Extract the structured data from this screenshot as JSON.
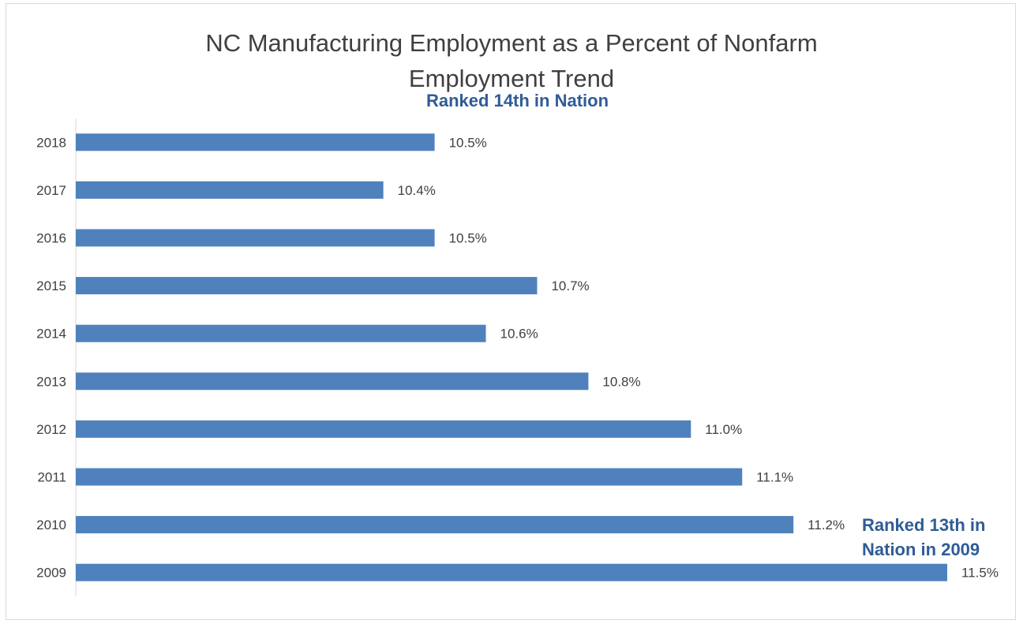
{
  "chart_data": {
    "type": "bar",
    "orientation": "horizontal",
    "title": "NC Manufacturing Employment as a Percent of Nonfarm\nEmployment Trend",
    "categories": [
      "2018",
      "2017",
      "2016",
      "2015",
      "2014",
      "2013",
      "2012",
      "2011",
      "2010",
      "2009"
    ],
    "values": [
      10.5,
      10.4,
      10.5,
      10.7,
      10.6,
      10.8,
      11.0,
      11.1,
      11.2,
      11.5
    ],
    "data_labels": [
      "10.5%",
      "10.4%",
      "10.5%",
      "10.7%",
      "10.6%",
      "10.8%",
      "11.0%",
      "11.1%",
      "11.2%",
      "11.5%"
    ],
    "xlim": [
      9.8,
      11.5
    ],
    "bar_color": "#4f81bd",
    "annotation_color": "#2f5c96",
    "annotations": {
      "top": "Ranked 14th in Nation",
      "bottom": "Ranked 13th in\nNation in 2009"
    },
    "grid": false,
    "legend": "none"
  }
}
